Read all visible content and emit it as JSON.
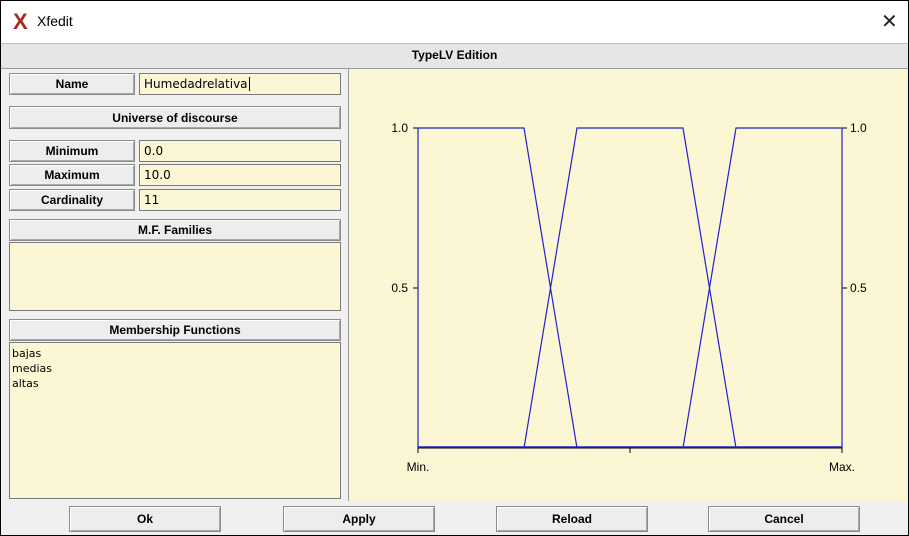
{
  "window": {
    "title": "Xfedit",
    "logo": "X",
    "close_glyph": "✕"
  },
  "header": {
    "title": "TypeLV Edition"
  },
  "left": {
    "name_label": "Name",
    "name_value": "Humedadrelativa",
    "universe_label": "Universe of discourse",
    "minimum_label": "Minimum",
    "minimum_value": "0.0",
    "maximum_label": "Maximum",
    "maximum_value": "10.0",
    "cardinality_label": "Cardinality",
    "cardinality_value": "11",
    "families_label": "M.F. Families",
    "mf_label": "Membership Functions",
    "mf_items": [
      "bajas",
      "medias",
      "altas"
    ]
  },
  "buttons": {
    "ok": "Ok",
    "apply": "Apply",
    "reload": "Reload",
    "cancel": "Cancel"
  },
  "chart_data": {
    "type": "line",
    "ylim": [
      0,
      1
    ],
    "x_tick_labels": [
      "Min.",
      "Max."
    ],
    "y_tick_labels_left": [
      "1.0",
      "0.5"
    ],
    "y_tick_labels_right": [
      "1.0",
      "0.5"
    ],
    "line_color": "#2222cc",
    "series": [
      {
        "name": "bajas",
        "x": [
          0,
          0,
          2.5,
          3.75
        ],
        "y": [
          0,
          1,
          1,
          0
        ]
      },
      {
        "name": "medias",
        "x": [
          2.5,
          3.75,
          6.25,
          7.5
        ],
        "y": [
          0,
          1,
          1,
          0
        ]
      },
      {
        "name": "altas",
        "x": [
          6.25,
          7.5,
          10,
          10
        ],
        "y": [
          0,
          1,
          1,
          0
        ]
      }
    ]
  },
  "colors": {
    "field_bg": "#fbf7d5",
    "plot_bg": "#fbf7d5",
    "logo": "#a62c1c"
  }
}
